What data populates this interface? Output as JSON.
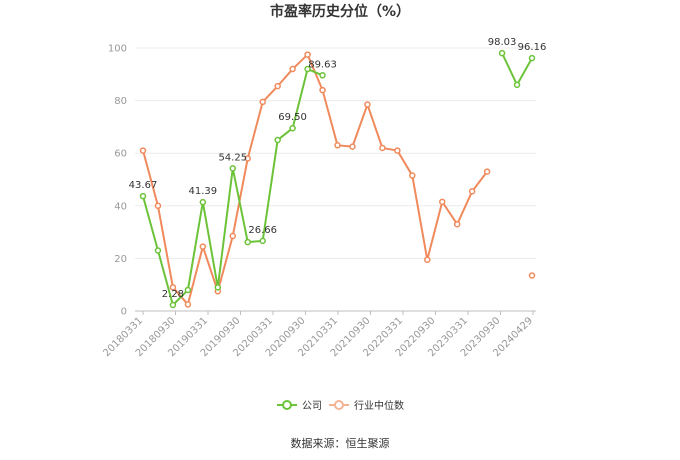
{
  "chart_data": {
    "type": "line",
    "title": "市盈率历史分位（%）",
    "ylim": [
      0,
      100
    ],
    "yticks": [
      0,
      20,
      40,
      60,
      80,
      100
    ],
    "x_tick_labels": [
      "20180331",
      "20180930",
      "20190331",
      "20190930",
      "20200331",
      "20200930",
      "20210331",
      "20210930",
      "20220331",
      "20220930",
      "20230331",
      "20230930",
      "20240429"
    ],
    "grid": true,
    "legend_position": "bottom",
    "series": [
      {
        "name": "公司",
        "color": "#6cc33a",
        "values": [
          43.67,
          23,
          2.28,
          8,
          41.39,
          9,
          54.25,
          26.2,
          26.66,
          65,
          69.5,
          92,
          89.63,
          null,
          null,
          null,
          null,
          null,
          null,
          null,
          null,
          null,
          null,
          null,
          98.03,
          86,
          96.16
        ]
      },
      {
        "name": "行业中位数",
        "color": "#f08a5d",
        "values": [
          61,
          40,
          9,
          2.5,
          24.5,
          7.5,
          28.5,
          58,
          79.5,
          85.5,
          92,
          97.5,
          84,
          63,
          62.5,
          78.5,
          62,
          61,
          51.5,
          19.5,
          41.5,
          33,
          45.5,
          53,
          null,
          null,
          13.5
        ]
      }
    ],
    "data_labels": [
      {
        "series": 0,
        "index": 0,
        "text": "43.67"
      },
      {
        "series": 0,
        "index": 2,
        "text": "2.28"
      },
      {
        "series": 0,
        "index": 4,
        "text": "41.39"
      },
      {
        "series": 0,
        "index": 6,
        "text": "54.25"
      },
      {
        "series": 0,
        "index": 8,
        "text": "26.66"
      },
      {
        "series": 0,
        "index": 10,
        "text": "69.50"
      },
      {
        "series": 0,
        "index": 12,
        "text": "89.63"
      },
      {
        "series": 0,
        "index": 24,
        "text": "98.03"
      },
      {
        "series": 0,
        "index": 26,
        "text": "96.16"
      }
    ]
  },
  "source": "数据来源：恒生聚源"
}
